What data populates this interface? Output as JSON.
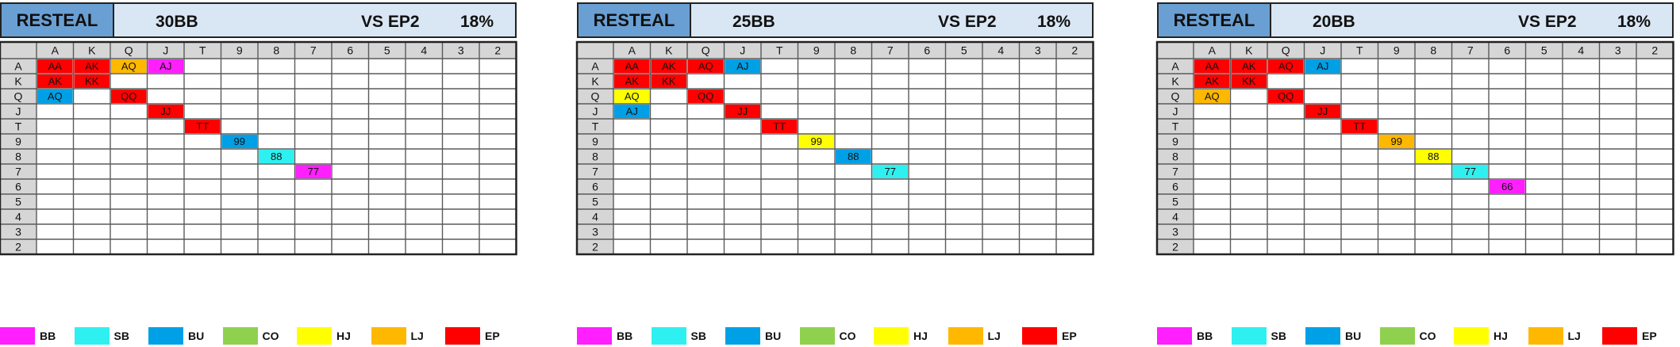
{
  "ranks": [
    "A",
    "K",
    "Q",
    "J",
    "T",
    "9",
    "8",
    "7",
    "6",
    "5",
    "4",
    "3",
    "2"
  ],
  "legend": [
    {
      "label": "BB",
      "color": "#ff1fff"
    },
    {
      "label": "SB",
      "color": "#2ff0f0"
    },
    {
      "label": "BU",
      "color": "#00a0e6"
    },
    {
      "label": "CO",
      "color": "#8fd14f"
    },
    {
      "label": "HJ",
      "color": "#ffff00"
    },
    {
      "label": "LJ",
      "color": "#ffb800"
    },
    {
      "label": "EP",
      "color": "#ff0000"
    }
  ],
  "charts": [
    {
      "header_left": "RESTEAL",
      "stack": "30BB",
      "vs": "VS EP2",
      "pct": "18%",
      "cells": [
        {
          "row": 0,
          "col": 0,
          "hand": "AA",
          "pos": "EP"
        },
        {
          "row": 0,
          "col": 1,
          "hand": "AK",
          "pos": "EP"
        },
        {
          "row": 0,
          "col": 2,
          "hand": "AQ",
          "pos": "LJ"
        },
        {
          "row": 0,
          "col": 3,
          "hand": "AJ",
          "pos": "BB"
        },
        {
          "row": 1,
          "col": 0,
          "hand": "AK",
          "pos": "EP"
        },
        {
          "row": 1,
          "col": 1,
          "hand": "KK",
          "pos": "EP"
        },
        {
          "row": 2,
          "col": 0,
          "hand": "AQ",
          "pos": "BU"
        },
        {
          "row": 2,
          "col": 2,
          "hand": "QQ",
          "pos": "EP"
        },
        {
          "row": 3,
          "col": 3,
          "hand": "JJ",
          "pos": "EP"
        },
        {
          "row": 4,
          "col": 4,
          "hand": "TT",
          "pos": "EP"
        },
        {
          "row": 5,
          "col": 5,
          "hand": "99",
          "pos": "BU"
        },
        {
          "row": 6,
          "col": 6,
          "hand": "88",
          "pos": "SB"
        },
        {
          "row": 7,
          "col": 7,
          "hand": "77",
          "pos": "BB"
        }
      ]
    },
    {
      "header_left": "RESTEAL",
      "stack": "25BB",
      "vs": "VS EP2",
      "pct": "18%",
      "cells": [
        {
          "row": 0,
          "col": 0,
          "hand": "AA",
          "pos": "EP"
        },
        {
          "row": 0,
          "col": 1,
          "hand": "AK",
          "pos": "EP"
        },
        {
          "row": 0,
          "col": 2,
          "hand": "AQ",
          "pos": "EP"
        },
        {
          "row": 0,
          "col": 3,
          "hand": "AJ",
          "pos": "BU"
        },
        {
          "row": 1,
          "col": 0,
          "hand": "AK",
          "pos": "EP"
        },
        {
          "row": 1,
          "col": 1,
          "hand": "KK",
          "pos": "EP"
        },
        {
          "row": 2,
          "col": 0,
          "hand": "AQ",
          "pos": "HJ"
        },
        {
          "row": 2,
          "col": 2,
          "hand": "QQ",
          "pos": "EP"
        },
        {
          "row": 3,
          "col": 0,
          "hand": "AJ",
          "pos": "BU"
        },
        {
          "row": 3,
          "col": 3,
          "hand": "JJ",
          "pos": "EP"
        },
        {
          "row": 4,
          "col": 4,
          "hand": "TT",
          "pos": "EP"
        },
        {
          "row": 5,
          "col": 5,
          "hand": "99",
          "pos": "HJ"
        },
        {
          "row": 6,
          "col": 6,
          "hand": "88",
          "pos": "BU"
        },
        {
          "row": 7,
          "col": 7,
          "hand": "77",
          "pos": "SB"
        }
      ]
    },
    {
      "header_left": "RESTEAL",
      "stack": "20BB",
      "vs": "VS EP2",
      "pct": "18%",
      "cells": [
        {
          "row": 0,
          "col": 0,
          "hand": "AA",
          "pos": "EP"
        },
        {
          "row": 0,
          "col": 1,
          "hand": "AK",
          "pos": "EP"
        },
        {
          "row": 0,
          "col": 2,
          "hand": "AQ",
          "pos": "EP"
        },
        {
          "row": 0,
          "col": 3,
          "hand": "AJ",
          "pos": "BU"
        },
        {
          "row": 1,
          "col": 0,
          "hand": "AK",
          "pos": "EP"
        },
        {
          "row": 1,
          "col": 1,
          "hand": "KK",
          "pos": "EP"
        },
        {
          "row": 2,
          "col": 0,
          "hand": "AQ",
          "pos": "LJ"
        },
        {
          "row": 2,
          "col": 2,
          "hand": "QQ",
          "pos": "EP"
        },
        {
          "row": 3,
          "col": 3,
          "hand": "JJ",
          "pos": "EP"
        },
        {
          "row": 4,
          "col": 4,
          "hand": "TT",
          "pos": "EP"
        },
        {
          "row": 5,
          "col": 5,
          "hand": "99",
          "pos": "LJ"
        },
        {
          "row": 6,
          "col": 6,
          "hand": "88",
          "pos": "HJ"
        },
        {
          "row": 7,
          "col": 7,
          "hand": "77",
          "pos": "SB"
        },
        {
          "row": 8,
          "col": 8,
          "hand": "66",
          "pos": "BB"
        }
      ]
    }
  ],
  "chart_data": {
    "type": "heatmap",
    "row_labels": [
      "A",
      "K",
      "Q",
      "J",
      "T",
      "9",
      "8",
      "7",
      "6",
      "5",
      "4",
      "3",
      "2"
    ],
    "col_labels": [
      "A",
      "K",
      "Q",
      "J",
      "T",
      "9",
      "8",
      "7",
      "6",
      "5",
      "4",
      "3",
      "2"
    ],
    "legend": [
      "BB",
      "SB",
      "BU",
      "CO",
      "HJ",
      "LJ",
      "EP"
    ]
  }
}
